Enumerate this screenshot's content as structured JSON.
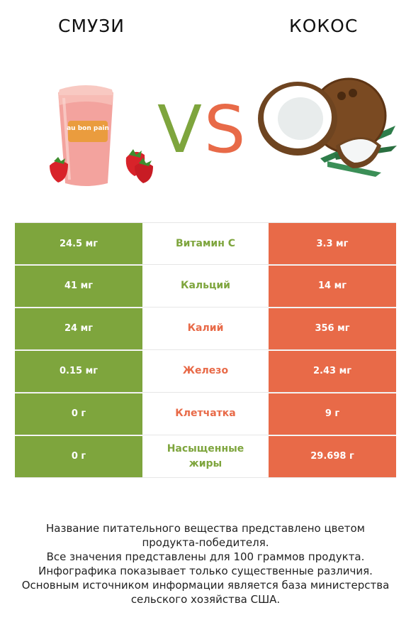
{
  "header": {
    "left_title": "СМУЗИ",
    "right_title": "КОКОС",
    "vs_v": "V",
    "vs_s": "S"
  },
  "images": {
    "left": "smoothie-cup-with-strawberries",
    "right": "coconut-halves-with-palm-leaves",
    "cup_brand": "au bon pain"
  },
  "colors": {
    "left_winner": "#7ea53d",
    "right_winner": "#e86a48"
  },
  "rows": [
    {
      "left": "24.5 мг",
      "nutrient": "Витамин C",
      "right": "3.3 мг",
      "winner": "left"
    },
    {
      "left": "41 мг",
      "nutrient": "Кальций",
      "right": "14 мг",
      "winner": "left"
    },
    {
      "left": "24 мг",
      "nutrient": "Калий",
      "right": "356 мг",
      "winner": "right"
    },
    {
      "left": "0.15 мг",
      "nutrient": "Железо",
      "right": "2.43 мг",
      "winner": "right"
    },
    {
      "left": "0 г",
      "nutrient": "Клетчатка",
      "right": "9 г",
      "winner": "right"
    },
    {
      "left": "0 г",
      "nutrient": "Насыщенные жиры",
      "right": "29.698 г",
      "winner": "left"
    }
  ],
  "footnote": [
    "Название питательного вещества представлено цветом",
    "продукта-победителя.",
    "Все значения представлены для 100 граммов продукта.",
    "Инфографика показывает только существенные различия.",
    "Основным источником информации является база министерства",
    "сельского хозяйства США."
  ]
}
